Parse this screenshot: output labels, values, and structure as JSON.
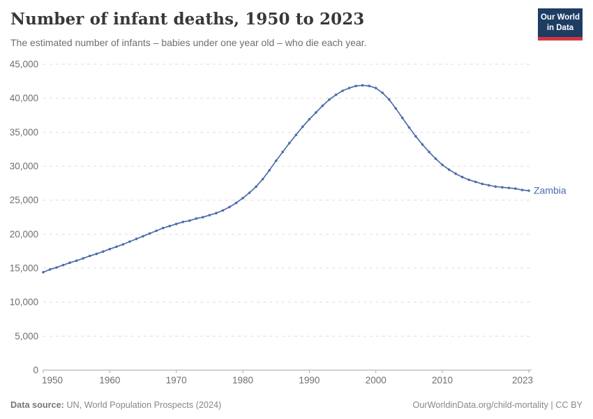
{
  "header": {
    "title": "Number of infant deaths, 1950 to 2023",
    "subtitle": "The estimated number of infants – babies under one year old – who die each year."
  },
  "logo": {
    "line1": "Our World",
    "line2": "in Data"
  },
  "footer": {
    "datasource_label": "Data source:",
    "datasource_value": " UN, World Population Prospects (2024)",
    "link": "OurWorldinData.org/child-mortality | CC BY"
  },
  "colors": {
    "line": "#4d6cab",
    "entity_label": "#4d6cab",
    "grid": "#dddddd",
    "axis": "#a5a5a5",
    "tick_text": "#6e6e6e",
    "logo_bg": "#1d3d63",
    "logo_red": "#d7353c"
  },
  "chart_data": {
    "type": "line",
    "title": "Number of infant deaths, 1950 to 2023",
    "entity": "Zambia",
    "xlabel": "",
    "ylabel": "",
    "xlim": [
      1950,
      2023
    ],
    "ylim": [
      0,
      45000
    ],
    "grid": true,
    "legend": "end-of-line-label",
    "xticks": [
      1950,
      1960,
      1970,
      1980,
      1990,
      2000,
      2010,
      2023
    ],
    "yticks": [
      0,
      5000,
      10000,
      15000,
      20000,
      25000,
      30000,
      35000,
      40000,
      45000
    ],
    "x": [
      1950,
      1951,
      1952,
      1953,
      1954,
      1955,
      1956,
      1957,
      1958,
      1959,
      1960,
      1961,
      1962,
      1963,
      1964,
      1965,
      1966,
      1967,
      1968,
      1969,
      1970,
      1971,
      1972,
      1973,
      1974,
      1975,
      1976,
      1977,
      1978,
      1979,
      1980,
      1981,
      1982,
      1983,
      1984,
      1985,
      1986,
      1987,
      1988,
      1989,
      1990,
      1991,
      1992,
      1993,
      1994,
      1995,
      1996,
      1997,
      1998,
      1999,
      2000,
      2001,
      2002,
      2003,
      2004,
      2005,
      2006,
      2007,
      2008,
      2009,
      2010,
      2011,
      2012,
      2013,
      2014,
      2015,
      2016,
      2017,
      2018,
      2019,
      2020,
      2021,
      2022,
      2023
    ],
    "series": [
      {
        "name": "Zambia",
        "values": [
          14400,
          14800,
          15100,
          15450,
          15800,
          16100,
          16450,
          16800,
          17100,
          17450,
          17800,
          18150,
          18500,
          18900,
          19300,
          19700,
          20100,
          20500,
          20900,
          21200,
          21500,
          21800,
          22000,
          22300,
          22500,
          22800,
          23100,
          23500,
          24000,
          24600,
          25300,
          26100,
          27000,
          28100,
          29400,
          30800,
          32100,
          33400,
          34600,
          35800,
          36900,
          37900,
          38900,
          39800,
          40500,
          41100,
          41500,
          41800,
          41900,
          41800,
          41500,
          40800,
          39800,
          38500,
          37100,
          35700,
          34400,
          33200,
          32100,
          31100,
          30200,
          29500,
          28900,
          28400,
          28000,
          27700,
          27400,
          27200,
          27000,
          26900,
          26800,
          26700,
          26500,
          26400
        ]
      }
    ]
  }
}
